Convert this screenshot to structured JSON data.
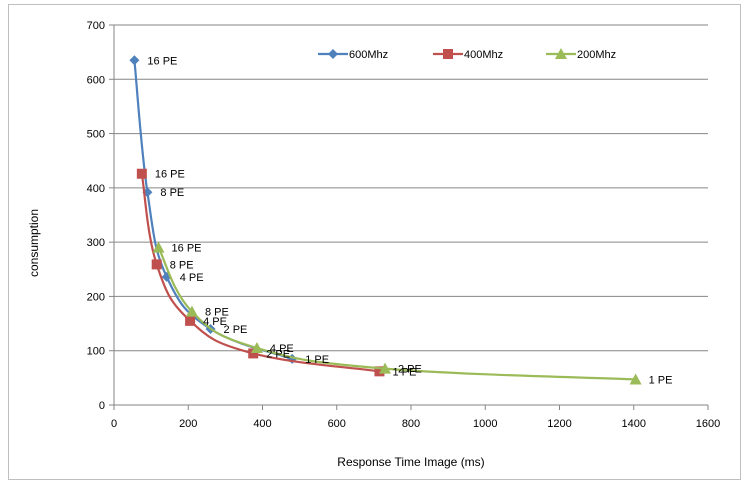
{
  "chart_data": {
    "type": "scatter",
    "title": "",
    "xlabel": "Response Time Image (ms)",
    "ylabel": "consumption",
    "xlim": [
      0,
      1600
    ],
    "ylim": [
      0,
      700
    ],
    "x_ticks": [
      0,
      200,
      400,
      600,
      800,
      1000,
      1200,
      1400,
      1600
    ],
    "y_ticks": [
      0,
      100,
      200,
      300,
      400,
      500,
      600,
      700
    ],
    "grid": "horizontal",
    "legend_position": "top-right",
    "smooth_lines": true,
    "series": [
      {
        "name": "600Mhz",
        "color": "#4f81bd",
        "marker": "diamond",
        "points": [
          {
            "x": 55,
            "y": 635,
            "label": "16 PE"
          },
          {
            "x": 90,
            "y": 392,
            "label": "8 PE"
          },
          {
            "x": 142,
            "y": 236,
            "label": "4 PE"
          },
          {
            "x": 260,
            "y": 140,
            "label": "2 PE"
          },
          {
            "x": 480,
            "y": 85,
            "label": "1 PE"
          }
        ]
      },
      {
        "name": "400Mhz",
        "color": "#c0504d",
        "marker": "square",
        "points": [
          {
            "x": 75,
            "y": 426,
            "label": "16 PE"
          },
          {
            "x": 115,
            "y": 259,
            "label": "8 PE"
          },
          {
            "x": 205,
            "y": 155,
            "label": "4 PE"
          },
          {
            "x": 375,
            "y": 95,
            "label": "2 PE"
          },
          {
            "x": 715,
            "y": 62,
            "label": "1 PE"
          }
        ]
      },
      {
        "name": "200Mhz",
        "color": "#9bbb59",
        "marker": "triangle",
        "points": [
          {
            "x": 120,
            "y": 290,
            "label": "16 PE"
          },
          {
            "x": 210,
            "y": 172,
            "label": "8 PE"
          },
          {
            "x": 385,
            "y": 105,
            "label": "4 PE"
          },
          {
            "x": 730,
            "y": 67,
            "label": "2 PE"
          },
          {
            "x": 1405,
            "y": 47,
            "label": "1 PE"
          }
        ]
      }
    ]
  }
}
